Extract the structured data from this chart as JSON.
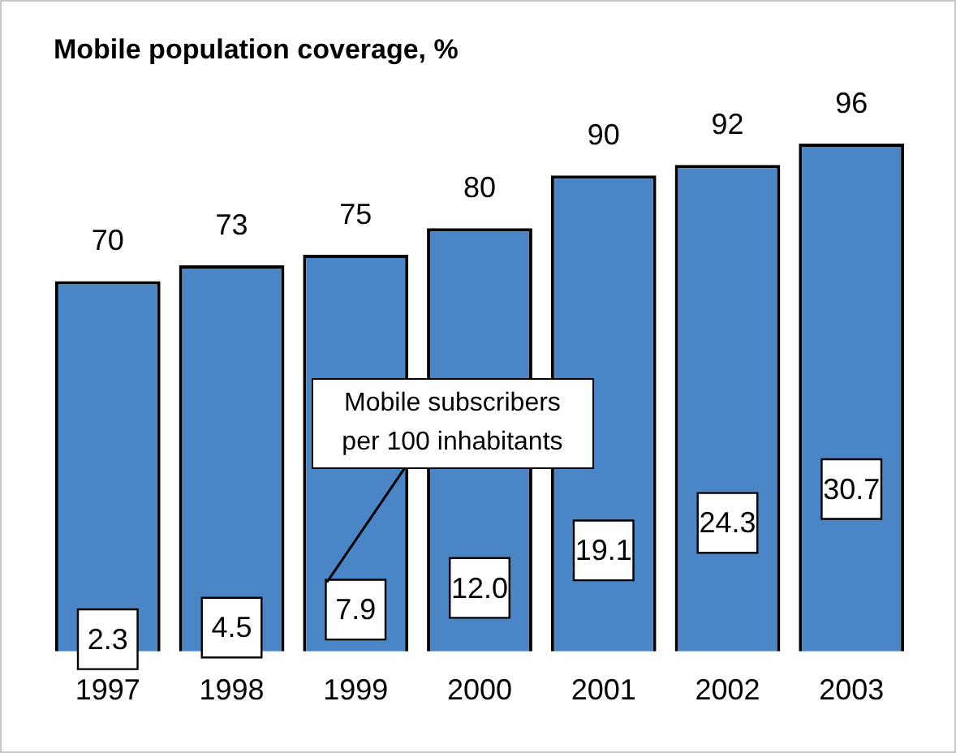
{
  "chart_data": {
    "type": "bar",
    "title": "Mobile population coverage, %",
    "categories": [
      "1997",
      "1998",
      "1999",
      "2000",
      "2001",
      "2002",
      "2003"
    ],
    "series": [
      {
        "color": "#4a86c6",
        "values": [
          70,
          73,
          75,
          80,
          90,
          92,
          96
        ]
      },
      {
        "type": "scatter",
        "color": "#ffffff",
        "values": [
          2.3,
          4.5,
          7.9,
          12.0,
          19.1,
          24.3,
          30.7
        ],
        "value_labels": [
          "2.3",
          "4.5",
          "7.9",
          "12.0",
          "19.1",
          "24.3",
          "30.7"
        ]
      }
    ],
    "data_labels": true,
    "grid": false,
    "legend": false,
    "tick_labels": "x",
    "marker": "square",
    "annotations": [
      "Mobile subscribers per 100 inhabitants"
    ]
  }
}
